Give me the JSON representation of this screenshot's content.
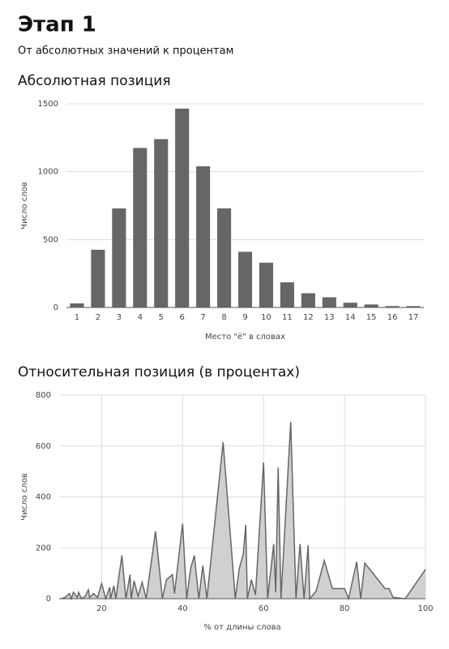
{
  "header": {
    "title": "Этап 1",
    "subtitle": "От абсолютных значений к процентам"
  },
  "chart_data": [
    {
      "type": "bar",
      "title": "Абсолютная позиция",
      "xlabel": "Место \"ё\" в словах",
      "ylabel": "Число слов",
      "categories": [
        "1",
        "2",
        "3",
        "4",
        "5",
        "6",
        "7",
        "8",
        "9",
        "10",
        "11",
        "12",
        "13",
        "14",
        "15",
        "16",
        "17"
      ],
      "values": [
        30,
        425,
        730,
        1175,
        1240,
        1465,
        1040,
        730,
        410,
        330,
        185,
        105,
        75,
        35,
        22,
        10,
        10
      ],
      "color": "#666666",
      "ylim": [
        0,
        1500
      ],
      "yticks": [
        0,
        500,
        1000,
        1500
      ],
      "grid": true
    },
    {
      "type": "area",
      "title": "Относительная позиция (в процентах)",
      "xlabel": "% от длины слова",
      "ylabel": "Число слов",
      "x": [
        10,
        11,
        12,
        12.5,
        13,
        14,
        14.3,
        15,
        16,
        16.7,
        17,
        18,
        19,
        20,
        21,
        22,
        22.2,
        23,
        23.5,
        25,
        26,
        27,
        27.3,
        28,
        29,
        30,
        31,
        33.3,
        35,
        36,
        37.5,
        38,
        40,
        41,
        42,
        42.9,
        44,
        45,
        46,
        50,
        53,
        54,
        55,
        55.6,
        56,
        57,
        58,
        60,
        61,
        62.5,
        63,
        63.6,
        64.3,
        66.7,
        68,
        69,
        70,
        71,
        71.4,
        73,
        75,
        77,
        78,
        80,
        81,
        83,
        84,
        85,
        87,
        90,
        91,
        92,
        95,
        100
      ],
      "values": [
        0,
        5,
        20,
        0,
        25,
        5,
        25,
        0,
        10,
        35,
        5,
        20,
        5,
        60,
        0,
        45,
        0,
        50,
        0,
        170,
        0,
        95,
        0,
        70,
        10,
        65,
        0,
        265,
        0,
        75,
        95,
        20,
        295,
        0,
        120,
        170,
        0,
        130,
        0,
        615,
        0,
        120,
        175,
        290,
        0,
        75,
        15,
        535,
        0,
        215,
        25,
        515,
        0,
        695,
        0,
        215,
        0,
        210,
        0,
        30,
        150,
        40,
        40,
        40,
        0,
        145,
        0,
        140,
        100,
        40,
        40,
        5,
        0,
        115
      ],
      "color": "#d0d0d0",
      "line_color": "#666666",
      "xlim": [
        9.5,
        100
      ],
      "xticks": [
        20,
        40,
        60,
        80,
        100
      ],
      "ylim": [
        0,
        800
      ],
      "yticks": [
        0,
        200,
        400,
        600,
        800
      ],
      "grid": true
    }
  ]
}
